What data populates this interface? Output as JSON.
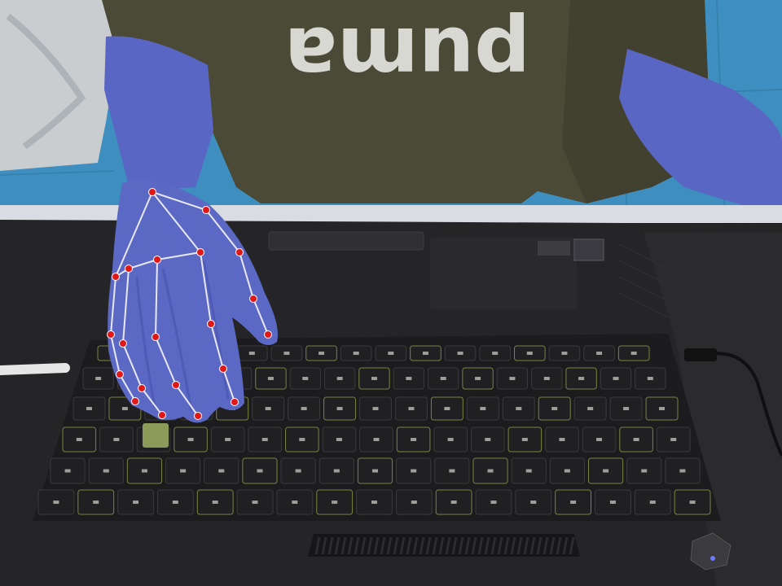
{
  "photo": {
    "shirt_print": "puma",
    "colors": {
      "floor": "#3e8fbf",
      "shirt": "#4b4a37",
      "skin_overlay": "#5b68c4",
      "laptop_body": "#252527",
      "keyboard_deck": "#1c1c1e",
      "key": "#202022",
      "key_legend": "#c8c8c0",
      "keyboard_backlight": "#c8d660",
      "landmark_point": "#e01818",
      "landmark_line": "#e8e8f4"
    }
  },
  "hand_landmarks": {
    "points": [
      {
        "id": 0,
        "u": 187,
        "v": 236
      },
      {
        "id": 1,
        "u": 253,
        "v": 258
      },
      {
        "id": 2,
        "u": 294,
        "v": 310
      },
      {
        "id": 3,
        "u": 311,
        "v": 367
      },
      {
        "id": 4,
        "u": 329,
        "v": 411
      },
      {
        "id": 5,
        "u": 246,
        "v": 310
      },
      {
        "id": 6,
        "u": 259,
        "v": 398
      },
      {
        "id": 7,
        "u": 274,
        "v": 453
      },
      {
        "id": 8,
        "u": 288,
        "v": 494
      },
      {
        "id": 9,
        "u": 193,
        "v": 319
      },
      {
        "id": 10,
        "u": 191,
        "v": 414
      },
      {
        "id": 11,
        "u": 216,
        "v": 473
      },
      {
        "id": 12,
        "u": 243,
        "v": 511
      },
      {
        "id": 13,
        "u": 158,
        "v": 330
      },
      {
        "id": 14,
        "u": 151,
        "v": 422
      },
      {
        "id": 15,
        "u": 174,
        "v": 477
      },
      {
        "id": 16,
        "u": 199,
        "v": 510
      },
      {
        "id": 17,
        "u": 142,
        "v": 340
      },
      {
        "id": 18,
        "u": 136,
        "v": 411
      },
      {
        "id": 19,
        "u": 147,
        "v": 460
      },
      {
        "id": 20,
        "u": 166,
        "v": 493
      }
    ],
    "connections": [
      [
        0,
        1
      ],
      [
        1,
        2
      ],
      [
        2,
        3
      ],
      [
        3,
        4
      ],
      [
        0,
        5
      ],
      [
        5,
        6
      ],
      [
        6,
        7
      ],
      [
        7,
        8
      ],
      [
        5,
        9
      ],
      [
        9,
        10
      ],
      [
        10,
        11
      ],
      [
        11,
        12
      ],
      [
        9,
        13
      ],
      [
        13,
        14
      ],
      [
        14,
        15
      ],
      [
        15,
        16
      ],
      [
        13,
        17
      ],
      [
        17,
        18
      ],
      [
        18,
        19
      ],
      [
        19,
        20
      ],
      [
        0,
        17
      ]
    ]
  }
}
